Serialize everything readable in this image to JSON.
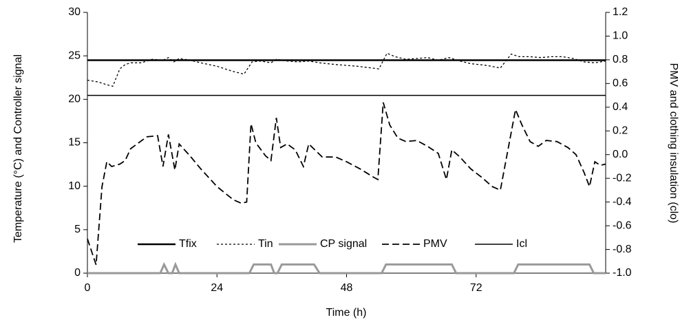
{
  "chart_data": {
    "type": "line",
    "xlabel": "Time (h)",
    "ylabel": "Temperature (°C) and Controller signal",
    "y2label": "PMV and clothing insulation (clo)",
    "xlim": [
      0,
      96
    ],
    "xticks": [
      0,
      24,
      48,
      72
    ],
    "ylim": [
      0,
      30
    ],
    "yticks": [
      0,
      5,
      10,
      15,
      20,
      25,
      30
    ],
    "y2lim": [
      -1,
      1.2
    ],
    "y2ticks": [
      {
        "value": -1,
        "label": "-1.0"
      },
      -0.8,
      -0.6,
      -0.4,
      -0.2,
      {
        "value": 0,
        "label": "0.0"
      },
      0.2,
      0.4,
      0.6,
      0.8,
      {
        "value": 1,
        "label": "1.0"
      },
      1.2
    ],
    "legend": "bottom",
    "series": [
      {
        "name": "Tfix",
        "color": "#000000",
        "line_style": "solid",
        "axis": "y",
        "x": [
          0,
          96
        ],
        "values": [
          24.5,
          24.5
        ]
      },
      {
        "name": "Tin",
        "color": "#000000",
        "line_style": "dotted",
        "axis": "y",
        "x": [
          0,
          2,
          3.5,
          4.7,
          6,
          7,
          8,
          10,
          12,
          14,
          15,
          16,
          17,
          19,
          21,
          24,
          27,
          29,
          30.5,
          32,
          34,
          35,
          37,
          39,
          41,
          43,
          46,
          50,
          54,
          55.5,
          57,
          59,
          61,
          63,
          65,
          67,
          69,
          71,
          74,
          76.5,
          78.5,
          80,
          82,
          84,
          86,
          88,
          90,
          92,
          94,
          96
        ],
        "values": [
          22.2,
          22,
          21.7,
          21.5,
          23.5,
          24,
          24.2,
          24.2,
          24.6,
          24.5,
          24.8,
          24.3,
          24.7,
          24.5,
          24.2,
          23.8,
          23.2,
          22.9,
          24.3,
          24.4,
          24.2,
          24.6,
          24.4,
          24.3,
          24.4,
          24.2,
          24,
          23.8,
          23.5,
          25.3,
          24.9,
          24.6,
          24.7,
          24.8,
          24.5,
          24.8,
          24.4,
          24.1,
          23.9,
          23.6,
          25.2,
          24.9,
          24.9,
          24.8,
          24.9,
          24.9,
          24.7,
          24.3,
          24.2,
          24.4
        ]
      },
      {
        "name": "CP signal",
        "color": "#999999",
        "line_style": "solid",
        "axis": "y",
        "x": [
          0,
          13.5,
          14.2,
          15,
          15.7,
          16.3,
          17,
          30,
          30.8,
          34,
          34.6,
          35.2,
          36,
          42,
          43,
          54.5,
          55.3,
          67.5,
          68.3,
          79,
          79.8,
          93,
          93.8,
          96
        ],
        "values": [
          0,
          0,
          1,
          0,
          0,
          1,
          0,
          0,
          1,
          1,
          0,
          0,
          1,
          1,
          0,
          0,
          1,
          1,
          0,
          0,
          1,
          1,
          0,
          0
        ]
      },
      {
        "name": "PMV",
        "color": "#000000",
        "line_style": "dashed",
        "axis": "y2",
        "x": [
          0,
          1.6,
          2.7,
          3.6,
          4.5,
          6,
          7,
          8,
          9.5,
          11,
          13,
          14,
          15,
          16.2,
          17,
          19,
          21,
          24,
          27,
          28.5,
          29.5,
          30.3,
          31.2,
          33,
          34,
          35,
          35.8,
          37,
          38.5,
          40,
          41,
          43.5,
          46,
          48,
          50.5,
          53,
          53.8,
          54.8,
          56,
          57.5,
          59,
          61,
          63,
          65,
          66.5,
          67.5,
          69,
          71,
          73,
          75,
          76.5,
          79.3,
          80.5,
          82,
          83.5,
          85,
          87,
          89,
          90.5,
          92,
          93,
          94,
          95,
          96
        ],
        "values": [
          -0.71,
          -0.93,
          -0.27,
          -0.06,
          -0.1,
          -0.08,
          -0.05,
          0.05,
          0.1,
          0.15,
          0.16,
          -0.1,
          0.17,
          -0.13,
          0.09,
          -0.01,
          -0.12,
          -0.27,
          -0.38,
          -0.41,
          -0.4,
          0.26,
          0.1,
          -0.01,
          -0.05,
          0.31,
          0.06,
          0.09,
          0.04,
          -0.1,
          0.09,
          -0.02,
          -0.02,
          -0.06,
          -0.12,
          -0.19,
          -0.21,
          0.44,
          0.25,
          0.14,
          0.11,
          0.12,
          0.07,
          0.01,
          -0.21,
          0.04,
          -0.02,
          -0.12,
          -0.19,
          -0.27,
          -0.3,
          0.38,
          0.25,
          0.11,
          0.07,
          0.12,
          0.11,
          0.06,
          0,
          -0.15,
          -0.27,
          -0.06,
          -0.09,
          -0.08
        ]
      },
      {
        "name": "Icl",
        "color": "#000000",
        "line_style": "solid",
        "axis": "y2",
        "x": [
          0,
          96
        ],
        "values": [
          0.5,
          0.5
        ]
      }
    ]
  }
}
